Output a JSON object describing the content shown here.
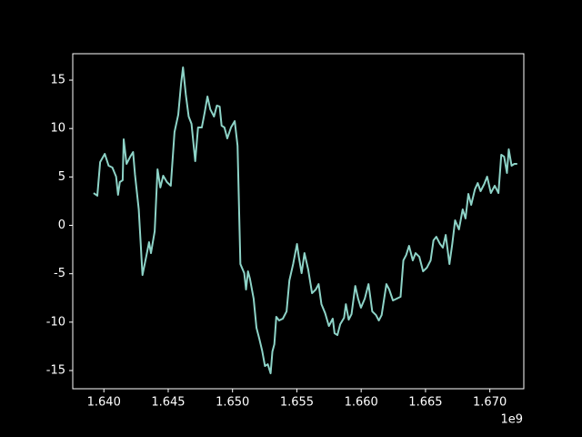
{
  "chart_data": {
    "type": "line",
    "x": [
      1.6392,
      1.63949,
      1.63971,
      1.64007,
      1.64037,
      1.64066,
      1.64095,
      1.6411,
      1.64124,
      1.64146,
      1.64154,
      1.64176,
      1.64205,
      1.64227,
      1.64242,
      1.64271,
      1.643,
      1.64329,
      1.64351,
      1.64366,
      1.64395,
      1.64417,
      1.64439,
      1.64461,
      1.6449,
      1.6452,
      1.64549,
      1.64578,
      1.646,
      1.64615,
      1.64637,
      1.64659,
      1.64681,
      1.6471,
      1.64732,
      1.64761,
      1.64783,
      1.64805,
      1.64827,
      1.64856,
      1.64878,
      1.649,
      1.64915,
      1.64937,
      1.64959,
      1.64988,
      1.65017,
      1.65039,
      1.65061,
      1.65091,
      1.65105,
      1.6512,
      1.65135,
      1.65164,
      1.65186,
      1.65208,
      1.6523,
      1.65252,
      1.65274,
      1.65296,
      1.6531,
      1.65325,
      1.6534,
      1.65362,
      1.65391,
      1.6542,
      1.65442,
      1.65471,
      1.65501,
      1.65515,
      1.65537,
      1.65559,
      1.65588,
      1.65618,
      1.65647,
      1.65669,
      1.65691,
      1.6572,
      1.65749,
      1.65779,
      1.65793,
      1.65815,
      1.65837,
      1.65867,
      1.65881,
      1.65903,
      1.65925,
      1.65954,
      1.65976,
      1.65998,
      1.66028,
      1.66057,
      1.66086,
      1.66115,
      1.66137,
      1.66159,
      1.66196,
      1.66218,
      1.66247,
      1.66277,
      1.66306,
      1.66328,
      1.6635,
      1.66372,
      1.66401,
      1.66423,
      1.66452,
      1.66481,
      1.66511,
      1.6654,
      1.66562,
      1.66584,
      1.66613,
      1.66635,
      1.66657,
      1.66686,
      1.66708,
      1.6673,
      1.6676,
      1.66789,
      1.66811,
      1.66833,
      1.66855,
      1.66884,
      1.66906,
      1.66928,
      1.66957,
      1.66979,
      1.67008,
      1.67038,
      1.67067,
      1.67089,
      1.67111,
      1.67133,
      1.67147,
      1.67169,
      1.67191,
      1.67213
    ],
    "series": [
      {
        "color": "#8dd3c7",
        "values": [
          3.34,
          3.06,
          6.54,
          7.38,
          6.16,
          5.97,
          5.03,
          3.15,
          4.47,
          4.66,
          8.89,
          6.35,
          7.1,
          7.57,
          5.22,
          1.65,
          -5.13,
          -3.24,
          -1.74,
          -2.87,
          -0.61,
          5.79,
          3.91,
          5.13,
          4.47,
          4.09,
          9.64,
          11.43,
          14.63,
          16.32,
          13.5,
          11.24,
          10.49,
          6.63,
          10.11,
          10.11,
          11.62,
          13.31,
          11.99,
          11.24,
          12.37,
          12.27,
          10.3,
          10.11,
          8.98,
          10.11,
          10.77,
          8.23,
          -4.0,
          -4.94,
          -6.63,
          -4.75,
          -5.5,
          -7.57,
          -10.58,
          -11.71,
          -12.94,
          -14.53,
          -14.35,
          -15.29,
          -13.03,
          -12.28,
          -9.45,
          -9.83,
          -9.64,
          -8.89,
          -5.69,
          -4.0,
          -1.93,
          -3.24,
          -4.94,
          -2.87,
          -4.56,
          -7.01,
          -6.63,
          -6.07,
          -8.14,
          -9.08,
          -10.4,
          -9.64,
          -11.15,
          -11.34,
          -10.21,
          -9.55,
          -8.14,
          -9.74,
          -9.17,
          -6.26,
          -7.57,
          -8.51,
          -7.57,
          -6.07,
          -8.89,
          -9.27,
          -9.83,
          -9.27,
          -6.07,
          -6.63,
          -7.76,
          -7.57,
          -7.38,
          -3.62,
          -3.06,
          -2.12,
          -3.62,
          -2.87,
          -3.25,
          -4.75,
          -4.37,
          -3.62,
          -1.55,
          -1.18,
          -1.93,
          -2.3,
          -0.99,
          -4.0,
          -1.93,
          0.52,
          -0.42,
          1.65,
          0.71,
          3.25,
          2.12,
          3.72,
          4.37,
          3.53,
          4.28,
          5.03,
          3.34,
          4.09,
          3.34,
          7.29,
          7.1,
          5.41,
          7.85,
          6.16,
          6.35,
          6.35
        ]
      }
    ],
    "xlim": [
      1.63758,
      1.67264
    ],
    "xticks": [
      {
        "value": 1.64,
        "label": "1.640"
      },
      {
        "value": 1.645,
        "label": "1.645"
      },
      {
        "value": 1.65,
        "label": "1.650"
      },
      {
        "value": 1.655,
        "label": "1.655"
      },
      {
        "value": 1.66,
        "label": "1.660"
      },
      {
        "value": 1.665,
        "label": "1.665"
      },
      {
        "value": 1.67,
        "label": "1.670"
      }
    ],
    "x_offset_label": "1e9",
    "ylim": [
      -16.88,
      17.73
    ],
    "yticks": [
      -15,
      -10,
      -5,
      0,
      5,
      10,
      15
    ]
  }
}
